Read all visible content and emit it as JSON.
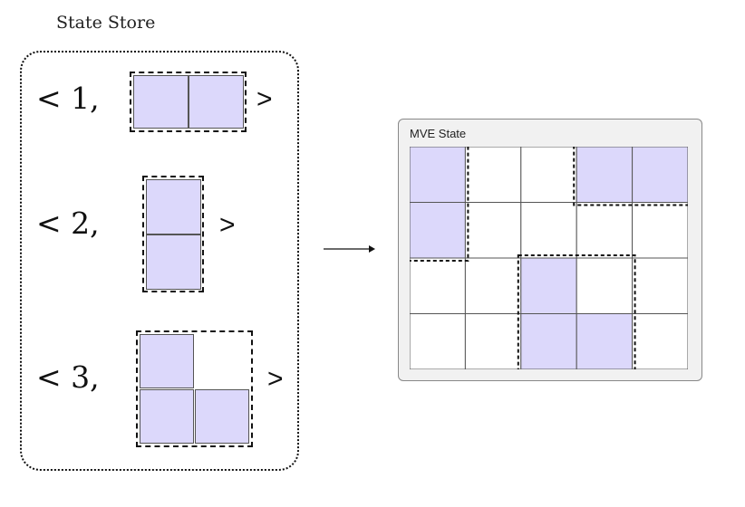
{
  "state_store": {
    "title": "State Store",
    "entries": [
      {
        "prefix": "< 1,",
        "suffix": ">",
        "shape": "1x2"
      },
      {
        "prefix": "< 2,",
        "suffix": ">",
        "shape": "2x1"
      },
      {
        "prefix": "< 3,",
        "suffix": ">",
        "shape": "L"
      }
    ]
  },
  "mve": {
    "title": "MVE State",
    "rows": 4,
    "cols": 5,
    "filled_cells": [
      [
        0,
        0
      ],
      [
        1,
        0
      ],
      [
        0,
        3
      ],
      [
        0,
        4
      ],
      [
        2,
        2
      ],
      [
        3,
        2
      ],
      [
        3,
        3
      ]
    ]
  },
  "colors": {
    "cell_fill": "#dcd8fb",
    "panel_bg": "#f1f1f1"
  }
}
